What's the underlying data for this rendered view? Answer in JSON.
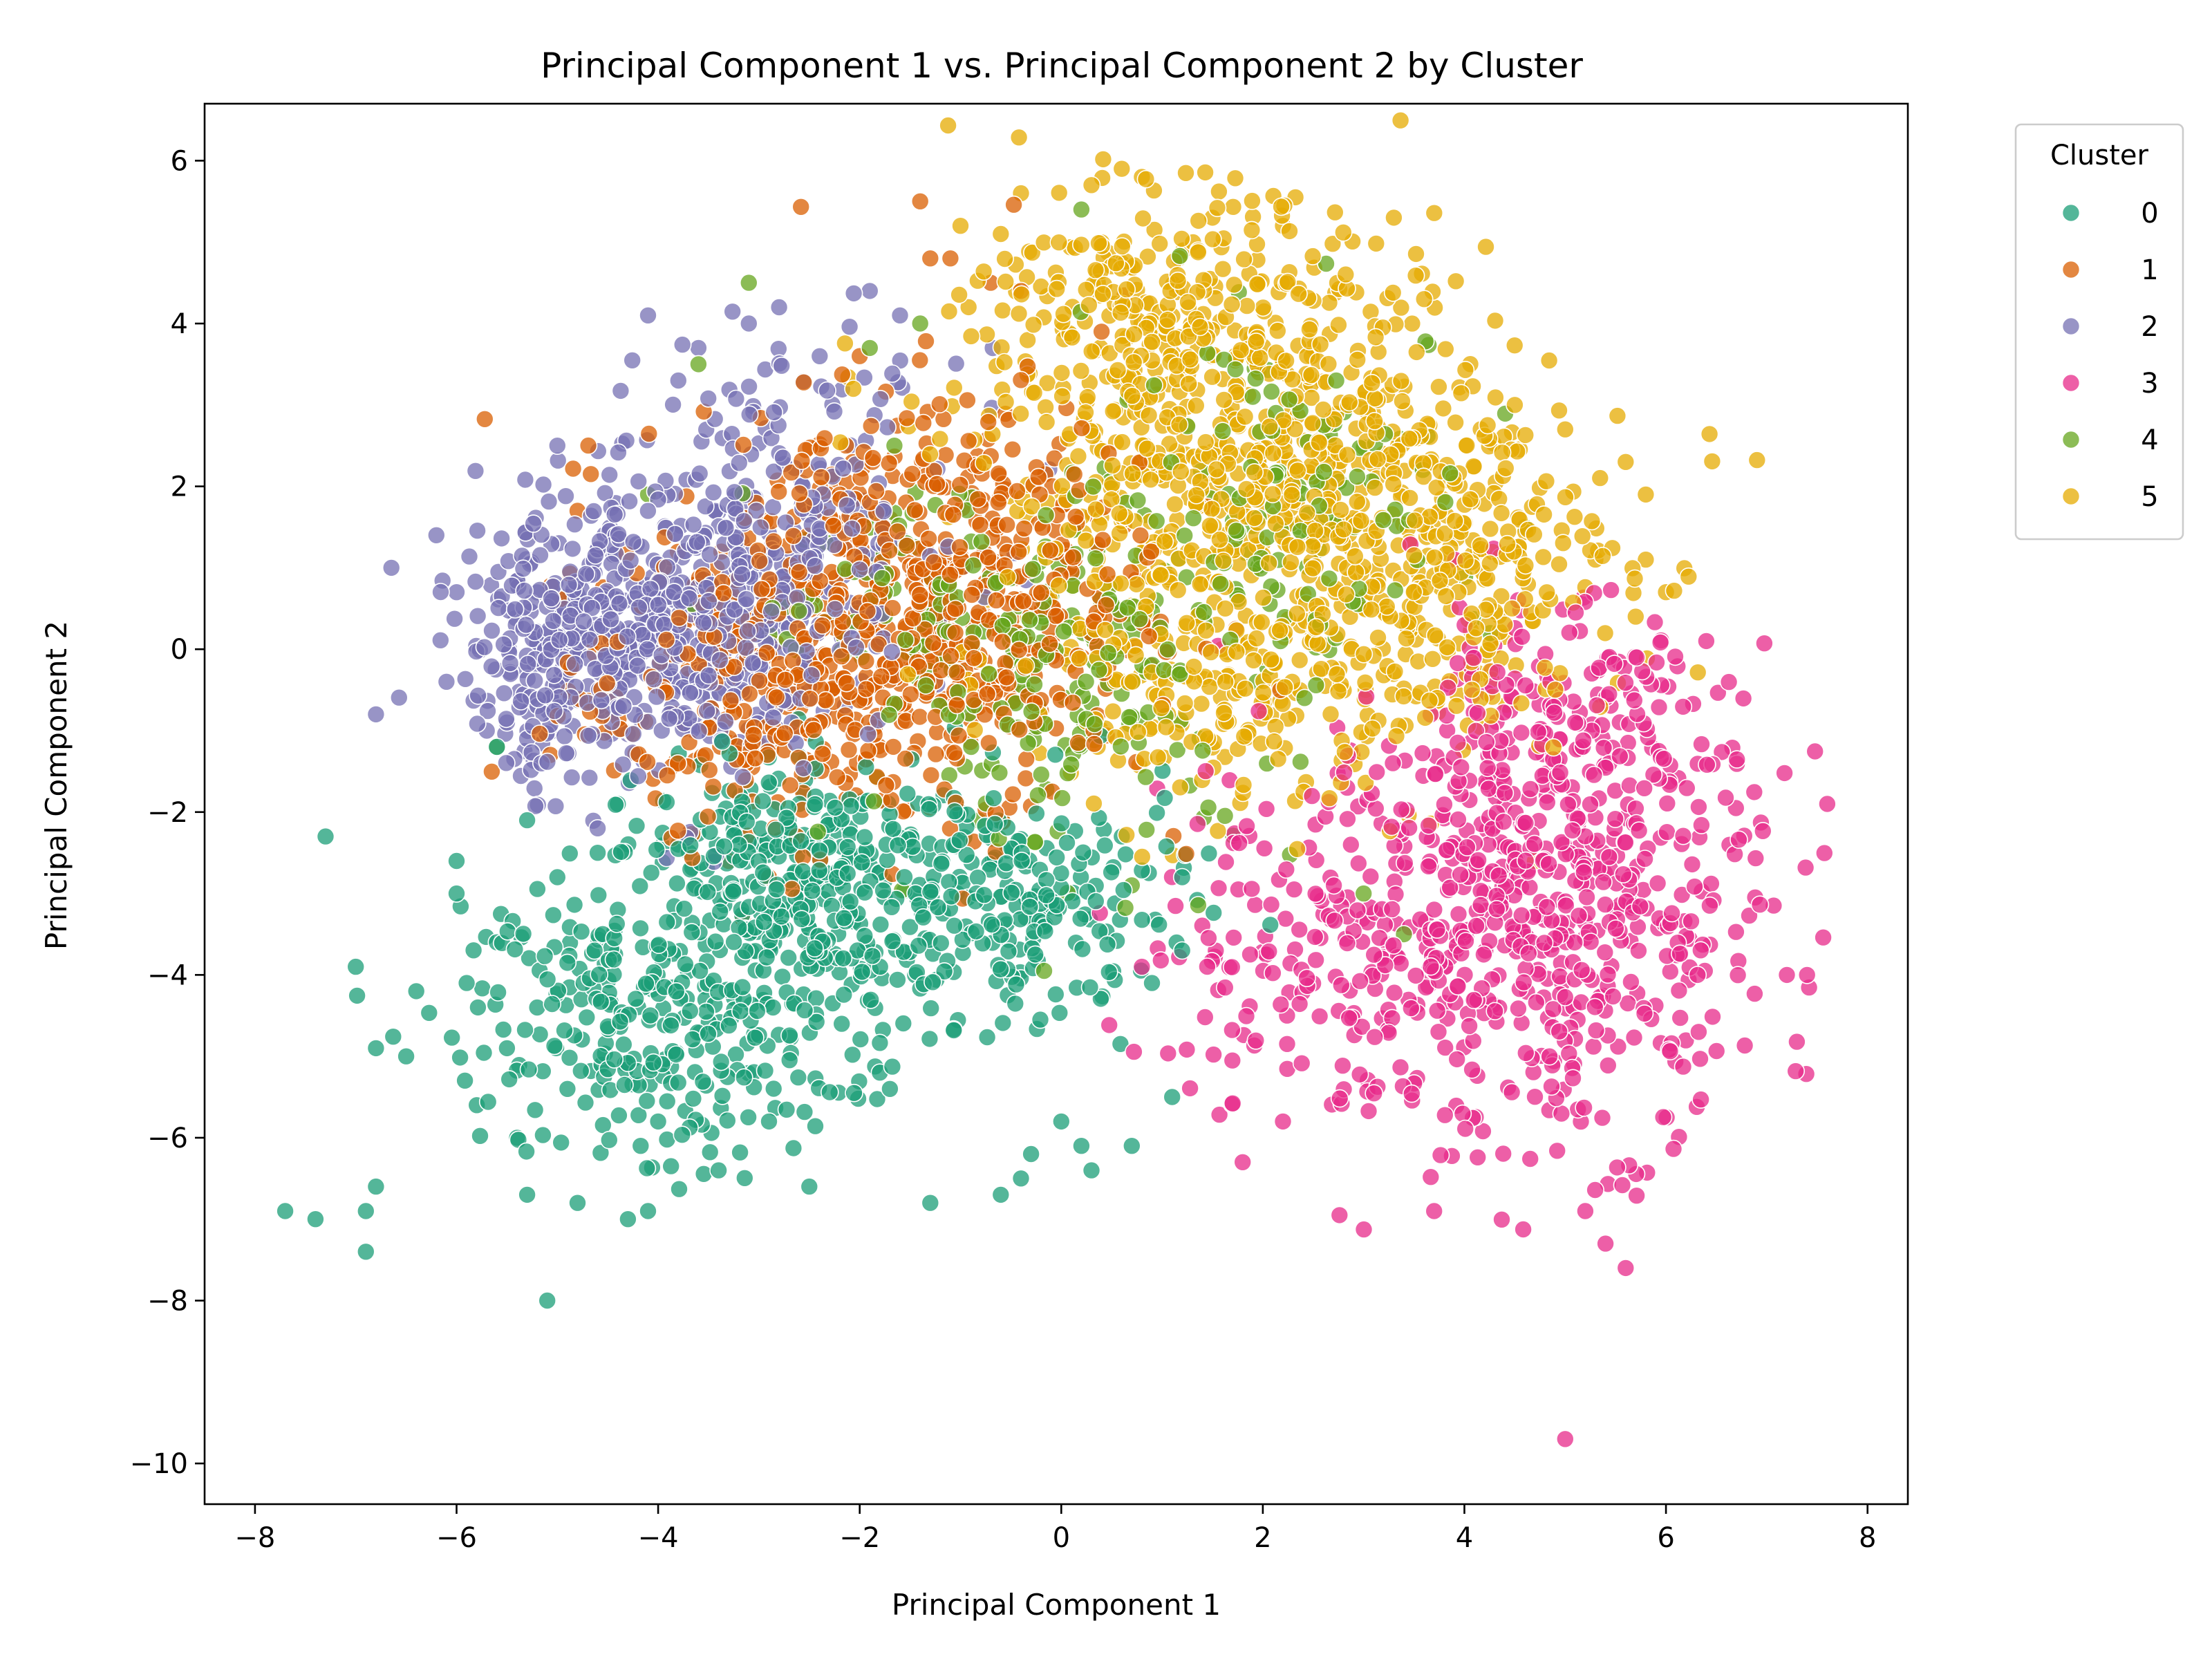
{
  "chart_data": {
    "type": "scatter",
    "title": "Principal Component 1 vs. Principal Component 2 by Cluster",
    "xlabel": "Principal Component 1",
    "ylabel": "Principal Component 2",
    "xlim": [
      -8.5,
      8.4
    ],
    "ylim": [
      -10.5,
      6.7
    ],
    "xticks": [
      -8,
      -6,
      -4,
      -2,
      0,
      2,
      4,
      6,
      8
    ],
    "xtick_labels": [
      "−8",
      "−6",
      "−4",
      "−2",
      "0",
      "2",
      "4",
      "6",
      "8"
    ],
    "yticks": [
      -10,
      -8,
      -6,
      -4,
      -2,
      0,
      2,
      4,
      6
    ],
    "ytick_labels": [
      "−10",
      "−8",
      "−6",
      "−4",
      "−2",
      "0",
      "2",
      "4",
      "6"
    ],
    "grid": false,
    "legend": {
      "title": "Cluster",
      "placement": "outside-top-right"
    },
    "series": [
      {
        "name": "0",
        "color": "#1b9e77",
        "points": [
          [
            -7.7,
            -6.9
          ],
          [
            -7.4,
            -7.0
          ],
          [
            -7.3,
            -2.3
          ],
          [
            -7.0,
            -3.9
          ],
          [
            -6.9,
            -6.9
          ],
          [
            -6.9,
            -7.4
          ],
          [
            -6.8,
            -4.9
          ],
          [
            -6.8,
            -6.6
          ],
          [
            -6.5,
            -5.0
          ],
          [
            -6.4,
            -4.2
          ],
          [
            -6.0,
            -2.6
          ],
          [
            -6.0,
            -3.0
          ],
          [
            -5.9,
            -4.1
          ],
          [
            -5.8,
            -5.6
          ],
          [
            -5.6,
            -3.6
          ],
          [
            -5.5,
            -4.9
          ],
          [
            -5.4,
            -6.0
          ],
          [
            -5.3,
            -2.1
          ],
          [
            -5.3,
            -6.7
          ],
          [
            -5.2,
            -4.4
          ],
          [
            -5.1,
            -8.0
          ],
          [
            -5.0,
            -2.8
          ],
          [
            -4.9,
            -5.4
          ],
          [
            -4.8,
            -6.8
          ],
          [
            -4.6,
            -2.5
          ],
          [
            -4.4,
            -3.2
          ],
          [
            -4.3,
            -7.0
          ],
          [
            -4.1,
            -6.9
          ],
          [
            -4.0,
            -5.8
          ],
          [
            -3.8,
            -2.4
          ],
          [
            -3.4,
            -6.4
          ],
          [
            -3.2,
            -2.1
          ],
          [
            -2.9,
            -5.8
          ],
          [
            -2.6,
            -1.9
          ],
          [
            -2.5,
            -6.6
          ],
          [
            -2.1,
            -2.2
          ],
          [
            -1.8,
            -5.2
          ],
          [
            -1.7,
            -5.4
          ],
          [
            -1.3,
            -6.8
          ],
          [
            -1.0,
            -2.0
          ],
          [
            -0.6,
            -6.7
          ],
          [
            -0.4,
            -6.5
          ],
          [
            -0.3,
            -6.2
          ],
          [
            0.0,
            -5.8
          ],
          [
            0.2,
            -6.1
          ],
          [
            0.3,
            -6.4
          ],
          [
            0.6,
            -2.3
          ],
          [
            0.7,
            -6.1
          ],
          [
            0.9,
            -4.1
          ],
          [
            1.1,
            -5.5
          ],
          [
            1.2,
            -3.7
          ],
          [
            1.2,
            -2.8
          ],
          [
            -5.6,
            -1.2
          ],
          [
            -4.4,
            -1.9
          ]
        ],
        "clusters": [
          {
            "cx": -4.0,
            "cy": -4.5,
            "sx": 0.9,
            "sy": 0.8,
            "n": 260
          },
          {
            "cx": -2.2,
            "cy": -3.3,
            "sx": 1.0,
            "sy": 0.9,
            "n": 300
          },
          {
            "cx": -0.3,
            "cy": -3.1,
            "sx": 0.8,
            "sy": 0.7,
            "n": 160
          },
          {
            "cx": -3.0,
            "cy": -2.5,
            "sx": 0.8,
            "sy": 0.5,
            "n": 120
          }
        ]
      },
      {
        "name": "1",
        "color": "#d95f02",
        "points": [
          [
            -1.4,
            5.5
          ],
          [
            -1.3,
            4.8
          ],
          [
            -1.1,
            4.8
          ],
          [
            -0.7,
            4.5
          ],
          [
            -0.4,
            4.4
          ],
          [
            -2.0,
            3.6
          ],
          [
            -4.8,
            1.7
          ],
          [
            -2.9,
            -2.8
          ],
          [
            -3.3,
            -2.6
          ],
          [
            0.4,
            3.9
          ]
        ],
        "clusters": [
          {
            "cx": -2.0,
            "cy": 0.3,
            "sx": 1.1,
            "sy": 1.2,
            "n": 460
          },
          {
            "cx": -0.8,
            "cy": 0.8,
            "sx": 0.9,
            "sy": 1.3,
            "n": 280
          },
          {
            "cx": -3.2,
            "cy": -0.7,
            "sx": 0.9,
            "sy": 0.7,
            "n": 140
          }
        ]
      },
      {
        "name": "2",
        "color": "#7570b3",
        "points": [
          [
            -6.8,
            -0.8
          ],
          [
            -6.2,
            1.4
          ],
          [
            -6.1,
            -0.4
          ],
          [
            -6.0,
            0.7
          ],
          [
            -5.5,
            -0.9
          ],
          [
            -5.0,
            2.5
          ],
          [
            -4.6,
            -2.2
          ],
          [
            -4.1,
            4.1
          ],
          [
            -3.8,
            3.3
          ],
          [
            -3.6,
            3.7
          ],
          [
            -3.1,
            4.0
          ],
          [
            -2.8,
            4.2
          ],
          [
            -1.9,
            4.4
          ],
          [
            -1.6,
            4.1
          ],
          [
            -5.7,
            -1.0
          ],
          [
            -5.3,
            -1.1
          ]
        ],
        "clusters": [
          {
            "cx": -4.0,
            "cy": 0.2,
            "sx": 0.9,
            "sy": 0.9,
            "n": 520
          },
          {
            "cx": -2.8,
            "cy": 1.6,
            "sx": 0.9,
            "sy": 1.0,
            "n": 240
          },
          {
            "cx": -5.0,
            "cy": -0.2,
            "sx": 0.5,
            "sy": 0.7,
            "n": 110
          }
        ]
      },
      {
        "name": "3",
        "color": "#e7298a",
        "points": [
          [
            5.0,
            -9.7
          ],
          [
            5.6,
            -7.6
          ],
          [
            5.4,
            -7.3
          ],
          [
            7.6,
            -1.9
          ],
          [
            7.4,
            -4.0
          ],
          [
            7.2,
            -4.0
          ],
          [
            6.4,
            0.1
          ],
          [
            1.8,
            -6.3
          ],
          [
            2.2,
            -5.8
          ],
          [
            3.7,
            -6.9
          ],
          [
            5.2,
            -6.9
          ],
          [
            0.8,
            -3.9
          ]
        ],
        "clusters": [
          {
            "cx": 5.0,
            "cy": -3.2,
            "sx": 1.0,
            "sy": 1.4,
            "n": 520
          },
          {
            "cx": 2.8,
            "cy": -3.6,
            "sx": 1.0,
            "sy": 1.2,
            "n": 220
          },
          {
            "cx": 4.8,
            "cy": -1.0,
            "sx": 0.9,
            "sy": 0.8,
            "n": 140
          }
        ]
      },
      {
        "name": "4",
        "color": "#66a61e",
        "points": [
          [
            -3.1,
            4.5
          ],
          [
            -3.6,
            3.5
          ],
          [
            -4.1,
            1.9
          ],
          [
            0.2,
            5.4
          ],
          [
            -1.4,
            4.0
          ],
          [
            -1.9,
            3.7
          ],
          [
            3.4,
            -3.5
          ],
          [
            3.0,
            -3.0
          ],
          [
            -5.6,
            -1.2
          ],
          [
            0.7,
            -2.9
          ],
          [
            4.6,
            1.5
          ],
          [
            1.9,
            3.1
          ]
        ],
        "clusters": [
          {
            "cx": 0.2,
            "cy": -0.3,
            "sx": 1.1,
            "sy": 1.1,
            "n": 190
          },
          {
            "cx": 2.3,
            "cy": 2.0,
            "sx": 1.0,
            "sy": 1.0,
            "n": 120
          },
          {
            "cx": -1.5,
            "cy": 0.5,
            "sx": 0.8,
            "sy": 0.9,
            "n": 70
          }
        ]
      },
      {
        "name": "5",
        "color": "#e6ab02",
        "points": [
          [
            0.6,
            5.9
          ],
          [
            0.8,
            5.8
          ],
          [
            0.3,
            5.7
          ],
          [
            -0.4,
            5.6
          ],
          [
            1.5,
            5.3
          ],
          [
            2.2,
            5.2
          ],
          [
            3.3,
            5.3
          ],
          [
            3.6,
            4.3
          ],
          [
            4.5,
            3.0
          ],
          [
            5.0,
            2.7
          ],
          [
            5.6,
            2.3
          ],
          [
            5.8,
            1.9
          ],
          [
            5.8,
            1.1
          ],
          [
            6.0,
            0.7
          ],
          [
            5.7,
            0.4
          ],
          [
            -1.0,
            5.2
          ],
          [
            -0.6,
            5.1
          ],
          [
            5.3,
            1.1
          ],
          [
            4.7,
            -2.6
          ]
        ],
        "clusters": [
          {
            "cx": 1.8,
            "cy": 2.2,
            "sx": 1.3,
            "sy": 1.3,
            "n": 620
          },
          {
            "cx": 3.6,
            "cy": 1.0,
            "sx": 1.0,
            "sy": 1.1,
            "n": 330
          },
          {
            "cx": 1.0,
            "cy": 4.2,
            "sx": 0.9,
            "sy": 0.7,
            "n": 200
          },
          {
            "cx": 1.5,
            "cy": -0.6,
            "sx": 1.0,
            "sy": 0.8,
            "n": 160
          }
        ]
      }
    ]
  }
}
